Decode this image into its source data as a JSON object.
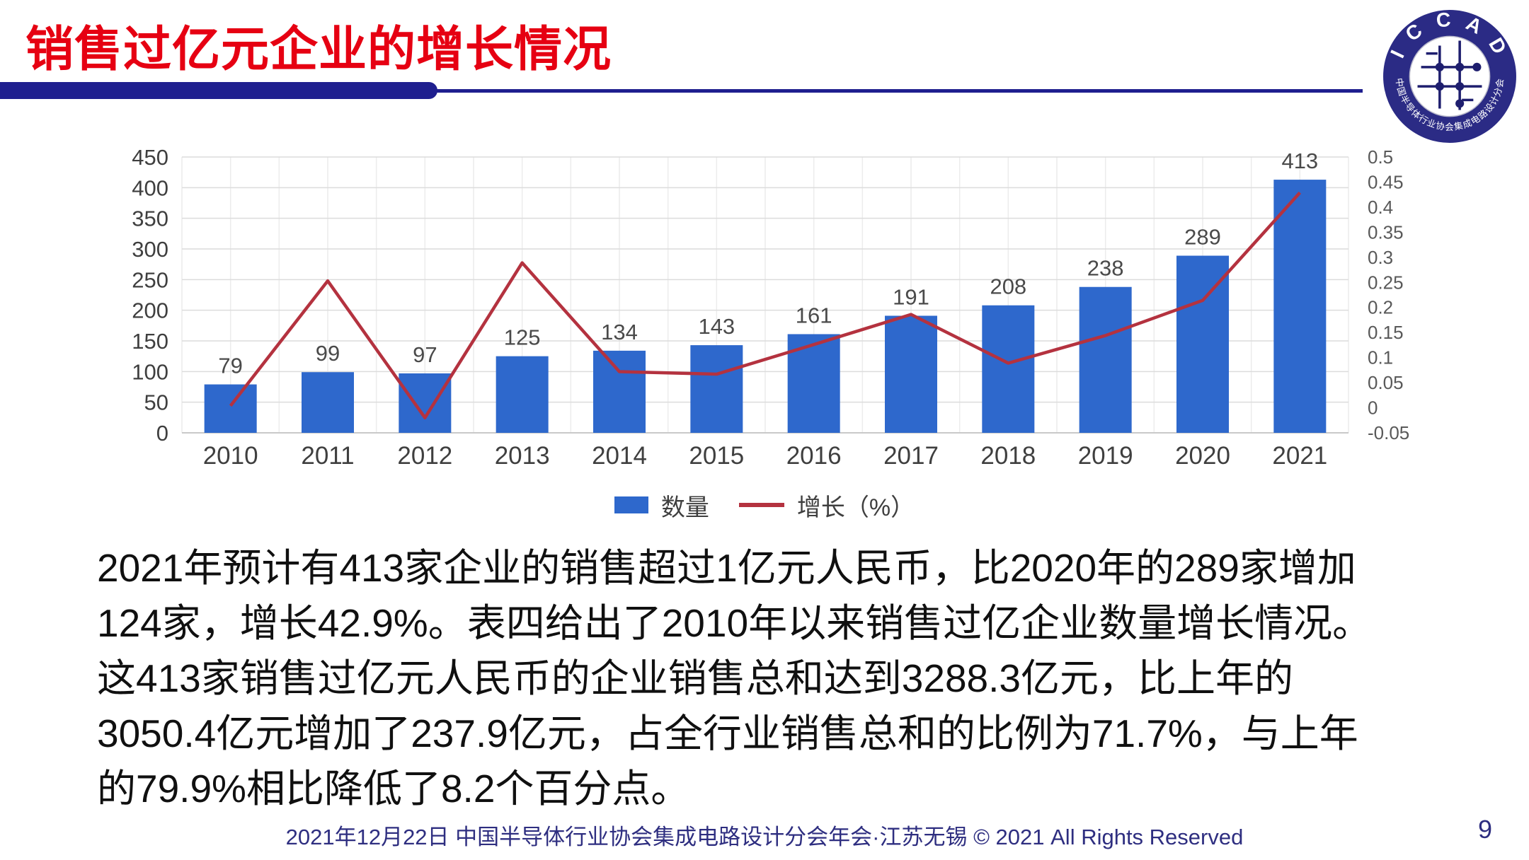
{
  "header": {
    "title": "销售过亿元企业的增长情况"
  },
  "logo": {
    "top_text": "I C C A D",
    "bottom_text": "中国半导体行业协会集成电路设计分会",
    "ring_color": "#2b2b85"
  },
  "chart_data": {
    "type": "bar+line",
    "categories": [
      "2010",
      "2011",
      "2012",
      "2013",
      "2014",
      "2015",
      "2016",
      "2017",
      "2018",
      "2019",
      "2020",
      "2021"
    ],
    "series": [
      {
        "name": "数量",
        "type": "bar",
        "color": "#2e68cc",
        "values": [
          79,
          99,
          97,
          125,
          134,
          143,
          161,
          191,
          208,
          238,
          289,
          413
        ]
      },
      {
        "name": "增长（%）",
        "type": "line",
        "color": "#b4323f",
        "values": [
          0.004,
          0.253,
          -0.02,
          0.289,
          0.072,
          0.067,
          0.126,
          0.186,
          0.089,
          0.144,
          0.214,
          0.429
        ]
      }
    ],
    "left_axis": {
      "min": 0,
      "max": 450,
      "ticks": [
        0,
        50,
        100,
        150,
        200,
        250,
        300,
        350,
        400,
        450
      ]
    },
    "right_axis": {
      "min": -0.05,
      "max": 0.5,
      "ticks_top_to_bottom": [
        "0.5",
        "0.45",
        "0.4",
        "0.35",
        "0.3",
        "0.25",
        "0.2",
        "0.15",
        "0.1",
        "0.05",
        "0",
        "-0.05"
      ]
    },
    "grid": "on",
    "legend_position": "bottom",
    "title": "",
    "xlabel": "",
    "ylabel": ""
  },
  "body": {
    "lines": [
      "2021年预计有413家企业的销售超过1亿元人民币，比2020年的289家增加",
      "124家，增长42.9%。表四给出了2010年以来销售过亿企业数量增长情况。",
      "这413家销售过亿元人民币的企业销售总和达到3288.3亿元，比上年的",
      "3050.4亿元增加了237.9亿元，占全行业销售总和的比例为71.7%，与上年",
      "的79.9%相比降低了8.2个百分点。"
    ]
  },
  "footer": {
    "text": "2021年12月22日 中国半导体行业协会集成电路设计分会年会·江苏无锡 © 2021 All Rights Reserved",
    "page": "9"
  }
}
